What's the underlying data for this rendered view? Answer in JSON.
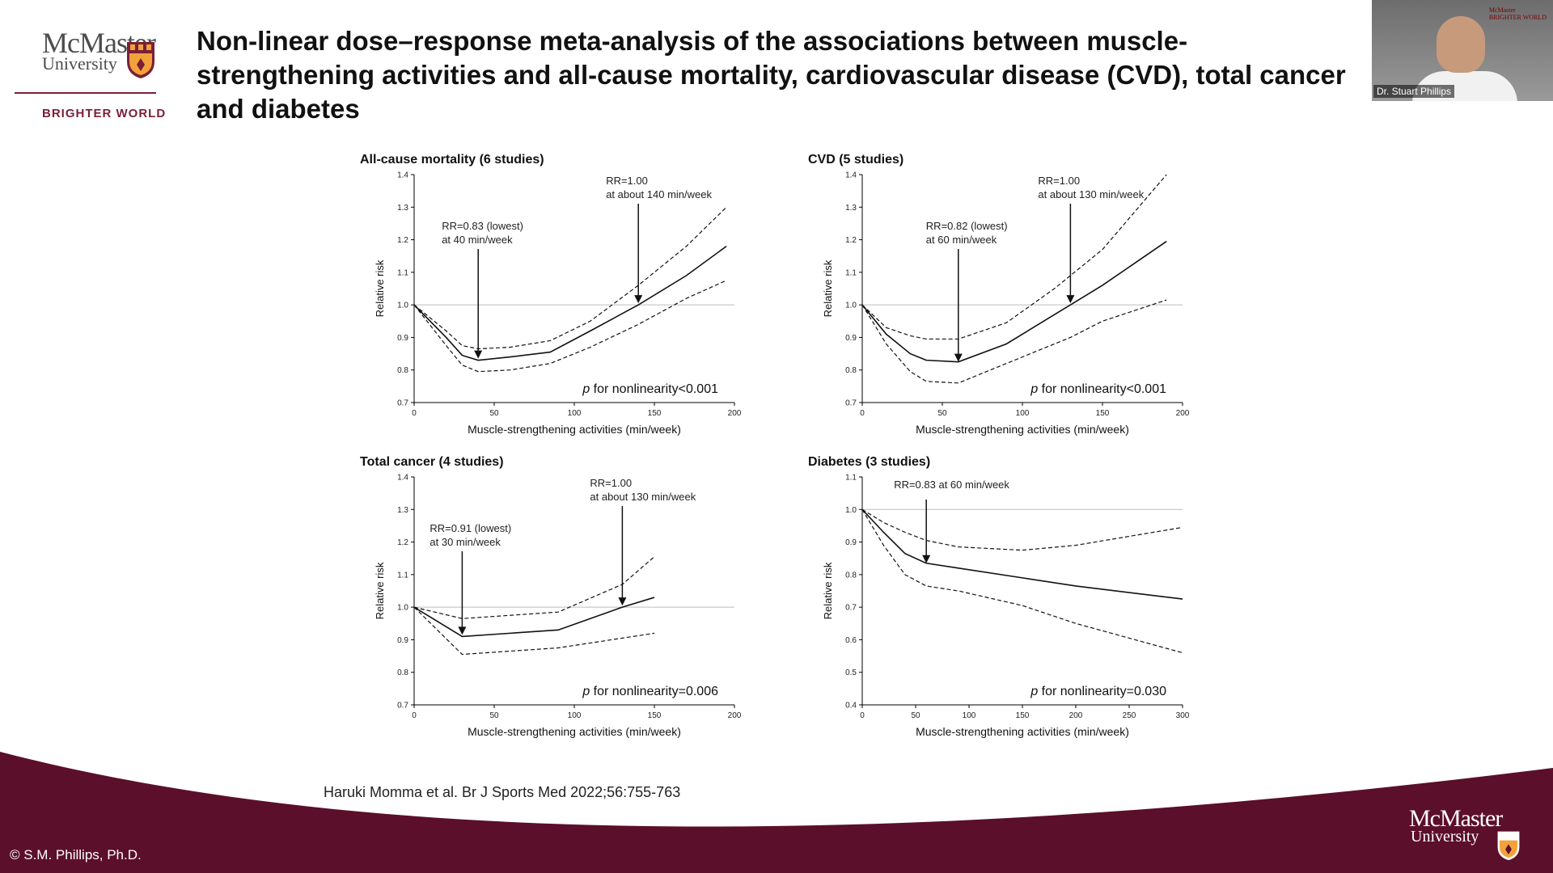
{
  "logo": {
    "wordmark": "McMaster",
    "subword": "University",
    "tagline": "BRIGHTER WORLD"
  },
  "slide": {
    "title_lines": [
      "Non-linear dose–response meta-analysis of the associations between muscle-",
      "strengthening activities and all-cause mortality, cardiovascular disease (CVD), total cancer",
      "and diabetes"
    ],
    "citation": "Haruki Momma et al. Br J Sports Med 2022;56:755-763",
    "copyright": "© S.M. Phillips, Ph.D."
  },
  "video": {
    "participant_name": "Dr. Stuart Phillips",
    "mini_logo_line1": "McMaster",
    "mini_logo_line2": "BRIGHTER WORLD"
  },
  "colors": {
    "brand_maroon": "#5b0f2a",
    "brand_accent": "#7a1f38"
  },
  "chart_data": [
    {
      "type": "line",
      "title": "All-cause mortality (6 studies)",
      "xlabel": "Muscle-strengthening activities (min/week)",
      "ylabel": "Relative risk",
      "xlim": [
        0,
        200
      ],
      "ylim": [
        0.7,
        1.4
      ],
      "xticks": [
        0,
        50,
        100,
        150,
        200
      ],
      "yticks": [
        "0.7",
        "0.8",
        "0.9",
        "1.0",
        "1.1",
        "1.2",
        "1.3",
        "1.4"
      ],
      "reference_line": 1.0,
      "series": [
        {
          "style": "solid",
          "x": [
            0,
            20,
            30,
            40,
            60,
            85,
            110,
            140,
            170,
            195
          ],
          "y": [
            1.0,
            0.9,
            0.845,
            0.83,
            0.84,
            0.855,
            0.92,
            1.0,
            1.09,
            1.18
          ]
        },
        {
          "style": "dashed",
          "x": [
            0,
            20,
            30,
            40,
            60,
            85,
            110,
            140,
            170,
            195
          ],
          "y": [
            1.0,
            0.92,
            0.875,
            0.865,
            0.87,
            0.89,
            0.95,
            1.06,
            1.18,
            1.3
          ]
        },
        {
          "style": "dashed",
          "x": [
            0,
            20,
            30,
            40,
            60,
            85,
            110,
            140,
            170,
            195
          ],
          "y": [
            1.0,
            0.875,
            0.815,
            0.795,
            0.8,
            0.82,
            0.87,
            0.94,
            1.02,
            1.075
          ]
        }
      ],
      "annotations": [
        {
          "lines": [
            "RR=0.83 (lowest)",
            "at 40 min/week"
          ],
          "x": 40,
          "y": 0.83
        },
        {
          "lines": [
            "RR=1.00",
            "at about 140 min/week"
          ],
          "x": 140,
          "y": 1.0
        }
      ],
      "note_italic": "p",
      "note": " for nonlinearity<0.001"
    },
    {
      "type": "line",
      "title": "CVD (5 studies)",
      "xlabel": "Muscle-strengthening activities (min/week)",
      "ylabel": "Relative risk",
      "xlim": [
        0,
        200
      ],
      "ylim": [
        0.7,
        1.4
      ],
      "xticks": [
        0,
        50,
        100,
        150,
        200
      ],
      "yticks": [
        "0.7",
        "0.8",
        "0.9",
        "1.0",
        "1.1",
        "1.2",
        "1.3",
        "1.4"
      ],
      "reference_line": 1.0,
      "series": [
        {
          "style": "solid",
          "x": [
            0,
            15,
            30,
            40,
            60,
            90,
            130,
            150,
            190
          ],
          "y": [
            1.0,
            0.91,
            0.85,
            0.83,
            0.825,
            0.88,
            1.0,
            1.06,
            1.195
          ]
        },
        {
          "style": "dashed",
          "x": [
            0,
            15,
            30,
            40,
            60,
            90,
            120,
            150,
            190
          ],
          "y": [
            1.0,
            0.93,
            0.905,
            0.895,
            0.895,
            0.945,
            1.05,
            1.17,
            1.4
          ]
        },
        {
          "style": "dashed",
          "x": [
            0,
            15,
            30,
            40,
            60,
            90,
            130,
            150,
            190
          ],
          "y": [
            1.0,
            0.88,
            0.795,
            0.765,
            0.76,
            0.82,
            0.9,
            0.95,
            1.015
          ]
        }
      ],
      "annotations": [
        {
          "lines": [
            "RR=0.82 (lowest)",
            "at 60 min/week"
          ],
          "x": 60,
          "y": 0.82
        },
        {
          "lines": [
            "RR=1.00",
            "at about 130 min/week"
          ],
          "x": 130,
          "y": 1.0
        }
      ],
      "note_italic": "p",
      "note": " for nonlinearity<0.001"
    },
    {
      "type": "line",
      "title": "Total cancer (4 studies)",
      "xlabel": "Muscle-strengthening activities (min/week)",
      "ylabel": "Relative risk",
      "xlim": [
        0,
        200
      ],
      "ylim": [
        0.7,
        1.4
      ],
      "xticks": [
        0,
        50,
        100,
        150,
        200
      ],
      "yticks": [
        "0.7",
        "0.8",
        "0.9",
        "1.0",
        "1.1",
        "1.2",
        "1.3",
        "1.4"
      ],
      "reference_line": 1.0,
      "series": [
        {
          "style": "solid",
          "x": [
            0,
            30,
            60,
            90,
            130,
            150
          ],
          "y": [
            1.0,
            0.91,
            0.92,
            0.93,
            1.0,
            1.03
          ]
        },
        {
          "style": "dashed",
          "x": [
            0,
            30,
            60,
            90,
            130,
            150
          ],
          "y": [
            1.0,
            0.965,
            0.975,
            0.985,
            1.07,
            1.155
          ]
        },
        {
          "style": "dashed",
          "x": [
            0,
            30,
            60,
            90,
            130,
            150
          ],
          "y": [
            1.0,
            0.855,
            0.865,
            0.875,
            0.905,
            0.92
          ]
        }
      ],
      "annotations": [
        {
          "lines": [
            "RR=0.91 (lowest)",
            "at 30 min/week"
          ],
          "x": 30,
          "y": 0.91
        },
        {
          "lines": [
            "RR=1.00",
            "at about 130 min/week"
          ],
          "x": 130,
          "y": 1.0
        }
      ],
      "note_italic": "p",
      "note": " for nonlinearity=0.006"
    },
    {
      "type": "line",
      "title": "Diabetes (3 studies)",
      "xlabel": "Muscle-strengthening activities (min/week)",
      "ylabel": "Relative risk",
      "xlim": [
        0,
        300
      ],
      "ylim": [
        0.4,
        1.1
      ],
      "xticks": [
        0,
        50,
        100,
        150,
        200,
        250,
        300
      ],
      "yticks": [
        "0.4",
        "0.5",
        "0.6",
        "0.7",
        "0.8",
        "0.9",
        "1.0",
        "1.1"
      ],
      "reference_line": 1.0,
      "series": [
        {
          "style": "solid",
          "x": [
            0,
            20,
            40,
            60,
            90,
            150,
            200,
            300
          ],
          "y": [
            1.0,
            0.93,
            0.865,
            0.835,
            0.82,
            0.79,
            0.765,
            0.725
          ]
        },
        {
          "style": "dashed",
          "x": [
            0,
            20,
            40,
            60,
            90,
            150,
            200,
            300
          ],
          "y": [
            1.0,
            0.96,
            0.93,
            0.905,
            0.885,
            0.875,
            0.89,
            0.945
          ]
        },
        {
          "style": "dashed",
          "x": [
            0,
            20,
            40,
            60,
            90,
            150,
            200,
            300
          ],
          "y": [
            1.0,
            0.89,
            0.8,
            0.765,
            0.75,
            0.705,
            0.65,
            0.56
          ]
        }
      ],
      "annotations": [
        {
          "lines": [
            "RR=0.83 at 60 min/week"
          ],
          "x": 60,
          "y": 0.83
        }
      ],
      "note_italic": "p",
      "note": " for nonlinearity=0.030"
    }
  ]
}
